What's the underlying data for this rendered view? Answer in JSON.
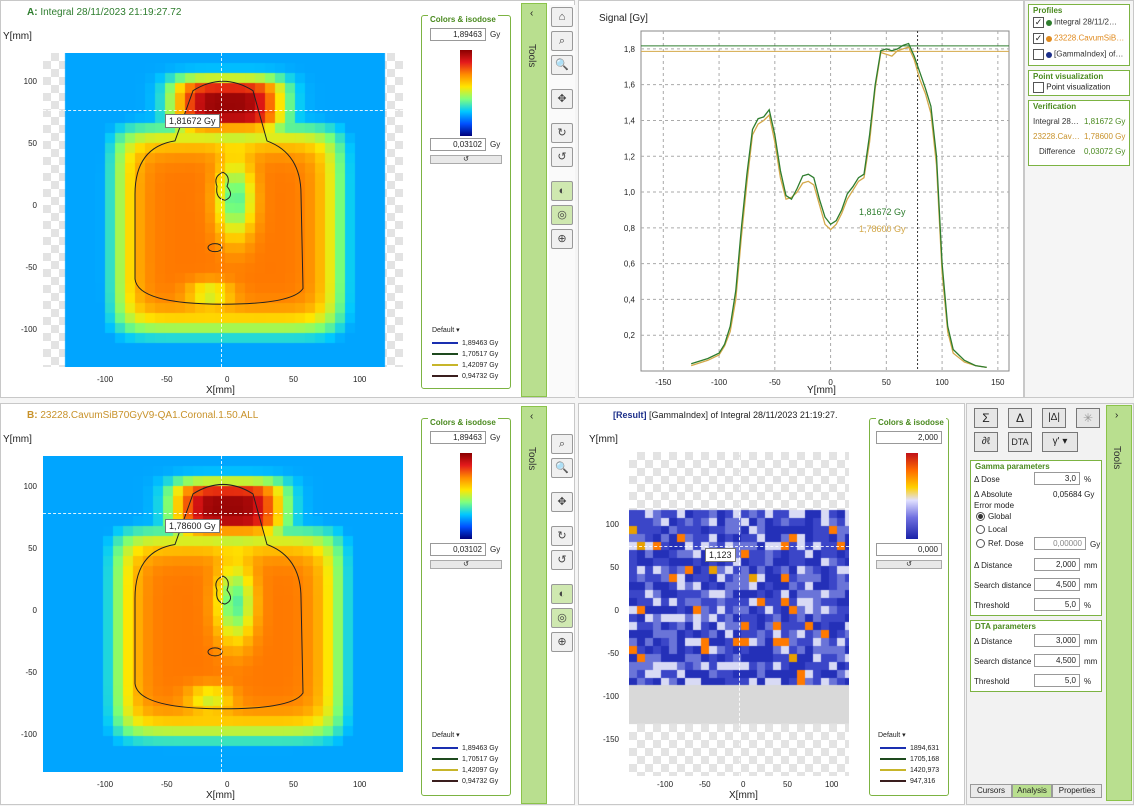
{
  "panelA": {
    "letter": "A:",
    "title": "Integral 28/11/2023 21:19:27.72",
    "ylabel": "Y[mm]",
    "xlabel": "X[mm]",
    "xticks": [
      "-100",
      "-50",
      "0",
      "50",
      "100"
    ],
    "yticks": [
      "100",
      "50",
      "0",
      "-50",
      "-100"
    ],
    "callout": "1,81672 Gy"
  },
  "panelB": {
    "letter": "B:",
    "title": "23228.CavumSiB70GyV9-QA1.Coronal.1.50.ALL",
    "ylabel": "Y[mm]",
    "xlabel": "X[mm]",
    "xticks": [
      "-100",
      "-50",
      "0",
      "50",
      "100"
    ],
    "yticks": [
      "100",
      "50",
      "0",
      "-50",
      "-100"
    ],
    "callout": "1,78600 Gy"
  },
  "colorsA": {
    "title": "Colors & isodose",
    "max": "1,89463",
    "min": "0,03102",
    "unit": "Gy",
    "default_label": "Default",
    "isodoses": [
      {
        "value": "1,89463 Gy",
        "color": "#1a2fb0"
      },
      {
        "value": "1,70517 Gy",
        "color": "#1e4a1e"
      },
      {
        "value": "1,42097 Gy",
        "color": "#c7b52a"
      },
      {
        "value": "0,94732 Gy",
        "color": "#3a1e1e"
      }
    ]
  },
  "colorsB": {
    "title": "Colors & isodose",
    "max": "1,89463",
    "min": "0,03102",
    "unit": "Gy",
    "default_label": "Default",
    "isodoses": [
      {
        "value": "1,89463 Gy",
        "color": "#1a2fb0"
      },
      {
        "value": "1,70517 Gy",
        "color": "#1e4a1e"
      },
      {
        "value": "1,42097 Gy",
        "color": "#c7b52a"
      },
      {
        "value": "0,94732 Gy",
        "color": "#3a1e1e"
      }
    ]
  },
  "tools": {
    "label": "Tools"
  },
  "profile": {
    "ylabel": "Signal [Gy]",
    "xlabel": "Y[mm]",
    "xticks": [
      "-150",
      "-100",
      "-50",
      "0",
      "50",
      "100",
      "150"
    ],
    "yticks": [
      "1,8",
      "1,6",
      "1,4",
      "1,2",
      "1,0",
      "0,8",
      "0,6",
      "0,4",
      "0,2"
    ],
    "readout_green": "1,81672 Gy",
    "readout_orange": "1,78600 Gy",
    "chart_data": {
      "type": "line",
      "xlabel": "Y[mm]",
      "ylabel": "Signal [Gy]",
      "xlim": [
        -170,
        160
      ],
      "ylim": [
        0,
        1.9
      ],
      "series": [
        {
          "name": "Integral 28/11/2…",
          "color": "#2e7d2e",
          "x": [
            -125,
            -110,
            -100,
            -95,
            -90,
            -85,
            -80,
            -75,
            -70,
            -65,
            -60,
            -55,
            -50,
            -45,
            -40,
            -35,
            -30,
            -25,
            -20,
            -15,
            -10,
            -5,
            0,
            5,
            10,
            15,
            20,
            25,
            30,
            35,
            40,
            45,
            50,
            55,
            60,
            65,
            70,
            75,
            80,
            85,
            90,
            95,
            100,
            105,
            110,
            120,
            130,
            140
          ],
          "y": [
            0.04,
            0.07,
            0.1,
            0.15,
            0.25,
            0.45,
            0.8,
            1.1,
            1.35,
            1.41,
            1.42,
            1.46,
            1.32,
            1.12,
            0.98,
            0.96,
            1.02,
            1.09,
            1.1,
            1.08,
            0.96,
            0.86,
            0.82,
            0.84,
            0.9,
            0.99,
            1.03,
            1.08,
            1.1,
            1.32,
            1.6,
            1.79,
            1.8,
            1.79,
            1.8,
            1.82,
            1.83,
            1.76,
            1.67,
            1.58,
            1.48,
            1.2,
            0.6,
            0.25,
            0.12,
            0.06,
            0.03,
            0.02
          ]
        },
        {
          "name": "23228.CavumSiB…",
          "color": "#d4a94a",
          "x": [
            -125,
            -110,
            -100,
            -95,
            -90,
            -85,
            -80,
            -75,
            -70,
            -65,
            -60,
            -55,
            -50,
            -45,
            -40,
            -35,
            -30,
            -25,
            -20,
            -15,
            -10,
            -5,
            0,
            5,
            10,
            15,
            20,
            25,
            30,
            35,
            40,
            45,
            50,
            55,
            60,
            65,
            70,
            75,
            80,
            85,
            90,
            95,
            100,
            105,
            110,
            120,
            130,
            140
          ],
          "y": [
            0.03,
            0.06,
            0.09,
            0.14,
            0.22,
            0.4,
            0.75,
            1.05,
            1.32,
            1.38,
            1.4,
            1.43,
            1.28,
            1.08,
            0.96,
            0.97,
            1.0,
            1.05,
            1.06,
            1.04,
            0.93,
            0.82,
            0.79,
            0.82,
            0.88,
            0.96,
            1.01,
            1.06,
            1.08,
            1.28,
            1.58,
            1.78,
            1.77,
            1.76,
            1.79,
            1.8,
            1.81,
            1.74,
            1.63,
            1.55,
            1.44,
            1.15,
            0.55,
            0.22,
            0.1,
            0.05,
            0.03,
            0.02
          ]
        }
      ],
      "cursor_x": 78
    }
  },
  "profilesPanel": {
    "title": "Profiles",
    "items": [
      {
        "label": "Integral 28/11/2…",
        "checked": true,
        "color": "#2e7d2e"
      },
      {
        "label": "23228.CavumSiB…",
        "checked": true,
        "color": "#e08a1e"
      },
      {
        "label": "[GammaIndex] of…",
        "checked": false,
        "color": "#1c2f8a"
      }
    ]
  },
  "pointViz": {
    "title": "Point visualization",
    "label": "Point visualization"
  },
  "verification": {
    "title": "Verification",
    "rows": [
      {
        "label": "Integral 28…",
        "value": "1,81672 Gy"
      },
      {
        "label": "23228.Cav…",
        "value": "1,78600 Gy"
      },
      {
        "label": "Difference",
        "value": "0,03072 Gy"
      }
    ]
  },
  "gammaMap": {
    "title_bracket": "[Result]",
    "title_rest": " [GammaIndex] of Integral 28/11/2023 21:19:27.",
    "ylabel": "Y[mm]",
    "xlabel": "X[mm]",
    "xticks": [
      "-100",
      "-50",
      "0",
      "50",
      "100"
    ],
    "yticks": [
      "100",
      "50",
      "0",
      "-50",
      "-100",
      "-150"
    ],
    "callout": "1,123"
  },
  "colorsGamma": {
    "title": "Colors & isodose",
    "max": "2,000",
    "min": "0,000",
    "default_label": "Default",
    "isodoses": [
      {
        "value": "1894,631",
        "color": "#1a2fb0"
      },
      {
        "value": "1705,168",
        "color": "#1e4a1e"
      },
      {
        "value": "1420,973",
        "color": "#c7b52a"
      },
      {
        "value": "947,316",
        "color": "#3a1e1e"
      }
    ]
  },
  "analysis": {
    "buttons": [
      "Σ",
      "Δ",
      "|Δ|",
      "✳",
      "∂ℓ",
      "DTA",
      "γ'"
    ],
    "gamma_title": "Gamma parameters",
    "dose_label": "Δ Dose",
    "dose_value": "3,0",
    "dose_unit": "%",
    "absolute_label": "Δ Absolute",
    "absolute_value": "0,05684 Gy",
    "error_mode": "Error mode",
    "global": "Global",
    "local": "Local",
    "refdose": "Ref. Dose",
    "refdose_value": "0,00000",
    "refdose_unit": "Gy",
    "distance_label": "Δ Distance",
    "distance_value": "2,000",
    "mm": "mm",
    "search_label": "Search distance",
    "search_value": "4,500",
    "threshold_label": "Threshold",
    "threshold_value": "5,0",
    "pct": "%",
    "dta_title": "DTA parameters",
    "dta_distance_value": "3,000",
    "dta_search_value": "4,500",
    "dta_threshold_value": "5,0",
    "tabs": [
      "Cursors",
      "Analysis",
      "Properties"
    ],
    "tools_label": "Tools"
  }
}
